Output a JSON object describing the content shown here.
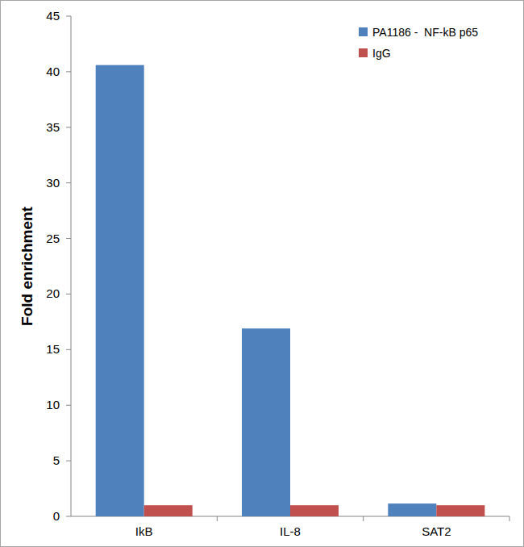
{
  "chart_data": {
    "type": "bar",
    "y_label": "Fold enrichment",
    "categories": [
      "IkB",
      "IL-8",
      "SAT2"
    ],
    "series": [
      {
        "name": "PA1186 -  NF-kB p65",
        "color": "#4f81bd",
        "values": [
          40.6,
          16.9,
          1.15
        ]
      },
      {
        "name": "IgG",
        "color": "#c0504d",
        "values": [
          1,
          1,
          1
        ]
      }
    ],
    "ylim": [
      0,
      45
    ],
    "yticks": [
      0,
      5,
      10,
      15,
      20,
      25,
      30,
      35,
      40,
      45
    ],
    "grid": false,
    "legend": "top-right"
  }
}
